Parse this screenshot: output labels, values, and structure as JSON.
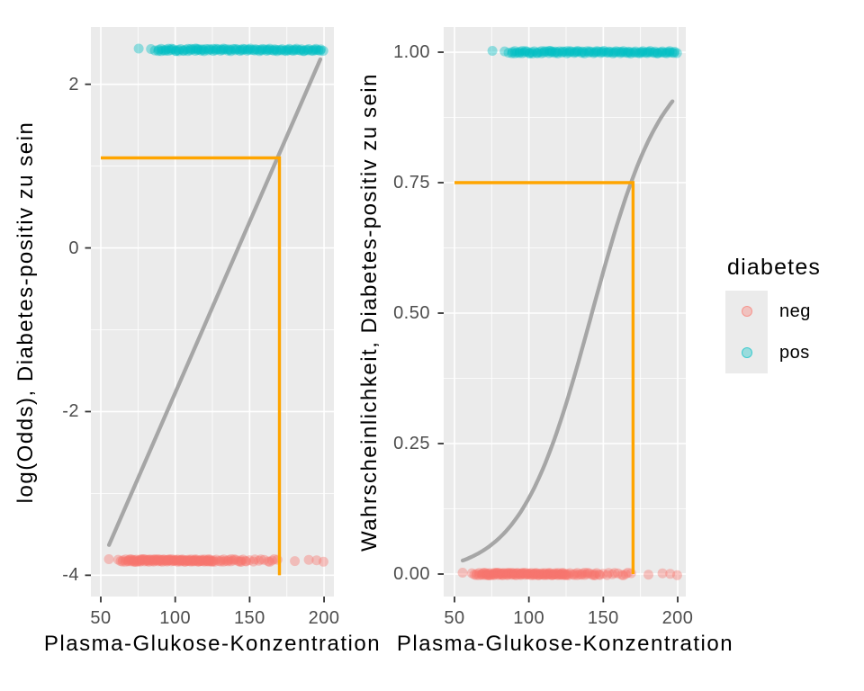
{
  "chart_data": [
    {
      "type": "scatter",
      "panel": "left",
      "xlabel": "Plasma-Glukose-Konzentration",
      "ylabel": "log(Odds), Diabetes-positiv zu sein",
      "xlim": [
        43.35,
        206.6
      ],
      "ylim": [
        -4.26,
        2.7
      ],
      "x_ticks": {
        "values": [
          50,
          100,
          150,
          200
        ],
        "labels": [
          "50",
          "100",
          "150",
          "200"
        ]
      },
      "y_ticks": {
        "values": [
          2,
          0,
          -2,
          -4
        ],
        "labels": [
          "2",
          "0",
          "-2",
          "-4"
        ]
      },
      "grid": "major+minor",
      "series": [
        {
          "name": "pos",
          "points_x_ref": "pos_glucose",
          "y_const": 2.42
        },
        {
          "name": "neg",
          "points_x_ref": "neg_glucose",
          "y_const": -3.82
        }
      ],
      "smooth": {
        "kind": "log_odds_line",
        "x_range": [
          55.5,
          197.5
        ]
      },
      "annotation": {
        "x": 170,
        "y": 1.1,
        "x_from": 50,
        "y_to": -4.0
      }
    },
    {
      "type": "scatter",
      "panel": "right",
      "xlabel": "Plasma-Glukose-Konzentration",
      "ylabel": "Wahrscheinlichkeit, Diabetes-positiv zu sein",
      "xlim": [
        42.74,
        205.44
      ],
      "ylim": [
        -0.0431,
        1.0483
      ],
      "x_ticks": {
        "values": [
          50,
          100,
          150,
          200
        ],
        "labels": [
          "50",
          "100",
          "150",
          "200"
        ]
      },
      "y_ticks": {
        "values": [
          1.0,
          0.75,
          0.5,
          0.25,
          0.0
        ],
        "labels": [
          "1.00",
          "0.75",
          "0.50",
          "0.25",
          "0.00"
        ]
      },
      "grid": "major+minor",
      "series": [
        {
          "name": "pos",
          "points_x_ref": "pos_glucose",
          "y_const": 1.0
        },
        {
          "name": "neg",
          "points_x_ref": "neg_glucose",
          "y_const": 0.0
        }
      ],
      "smooth": {
        "kind": "logistic_curve",
        "x_range": [
          55.5,
          197.5
        ]
      },
      "annotation": {
        "x": 170,
        "y": 0.75,
        "x_from": 50,
        "y_to": 0.0
      }
    }
  ],
  "model": {
    "type": "logistic-regression",
    "intercept": -5.95,
    "slope": 0.0418
  },
  "observations": {
    "neg_glucose": [
      56,
      62,
      63,
      64,
      65,
      66,
      67,
      68,
      68,
      69,
      70,
      70,
      71,
      71,
      72,
      72,
      73,
      73,
      74,
      74,
      75,
      75,
      76,
      76,
      77,
      77,
      78,
      78,
      79,
      79,
      80,
      80,
      81,
      81,
      82,
      82,
      83,
      83,
      84,
      84,
      85,
      85,
      86,
      86,
      87,
      87,
      88,
      88,
      89,
      89,
      90,
      90,
      91,
      91,
      92,
      92,
      93,
      93,
      94,
      94,
      95,
      95,
      96,
      96,
      97,
      97,
      98,
      98,
      99,
      99,
      100,
      100,
      101,
      101,
      102,
      102,
      103,
      103,
      104,
      104,
      105,
      105,
      106,
      106,
      107,
      107,
      108,
      108,
      109,
      109,
      110,
      110,
      111,
      111,
      112,
      112,
      113,
      113,
      114,
      114,
      115,
      115,
      116,
      116,
      117,
      117,
      118,
      118,
      119,
      119,
      120,
      120,
      121,
      121,
      122,
      122,
      123,
      123,
      124,
      124,
      125,
      125,
      126,
      127,
      128,
      129,
      130,
      131,
      132,
      133,
      134,
      135,
      136,
      137,
      138,
      139,
      140,
      141,
      142,
      143,
      144,
      145,
      146,
      147,
      148,
      150,
      152,
      154,
      156,
      158,
      160,
      162,
      164,
      165,
      167,
      169,
      180,
      190,
      195,
      199
    ],
    "pos_glucose": [
      76,
      84,
      86,
      88,
      89,
      90,
      91,
      92,
      93,
      94,
      95,
      96,
      97,
      98,
      99,
      100,
      101,
      102,
      103,
      104,
      105,
      106,
      107,
      108,
      109,
      110,
      111,
      112,
      113,
      114,
      115,
      115,
      116,
      117,
      118,
      119,
      120,
      121,
      122,
      123,
      124,
      125,
      126,
      127,
      128,
      129,
      130,
      131,
      132,
      133,
      134,
      135,
      136,
      137,
      138,
      139,
      140,
      141,
      142,
      143,
      144,
      145,
      146,
      147,
      148,
      149,
      150,
      151,
      152,
      153,
      154,
      155,
      156,
      157,
      158,
      159,
      160,
      161,
      162,
      163,
      164,
      165,
      166,
      167,
      168,
      169,
      170,
      171,
      172,
      173,
      174,
      175,
      176,
      177,
      178,
      179,
      180,
      181,
      182,
      183,
      184,
      185,
      186,
      187,
      188,
      189,
      190,
      191,
      192,
      193,
      194,
      195,
      196,
      197,
      198,
      199
    ]
  },
  "legend": {
    "title": "diabetes",
    "items": [
      {
        "label": "neg",
        "color": "#F8766D"
      },
      {
        "label": "pos",
        "color": "#00BFC4"
      }
    ]
  },
  "colors": {
    "neg_points": "#F8766D",
    "pos_points": "#00BFC4",
    "smooth_line": "#A6A6A6",
    "annotation_line": "#FFA500",
    "panel_background": "#EBEBEB",
    "gridline": "#FFFFFF",
    "tick_text": "#4D4D4D",
    "axis_tick_mark": "#333333"
  }
}
